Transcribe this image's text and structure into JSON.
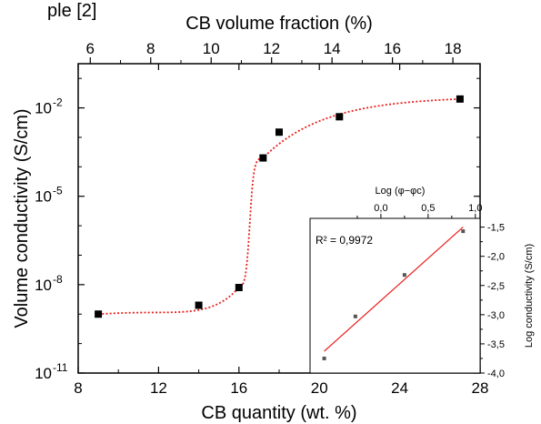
{
  "chart_data": [
    {
      "type": "scatter",
      "title": "",
      "header_fragment": "ple [2]",
      "xlabel": "CB quantity (wt. %)",
      "x2label": "CB volume fraction (%)",
      "ylabel": "Volume conductivity (S/cm)",
      "xlim": [
        8,
        28
      ],
      "x2lim": [
        5.6,
        18.9
      ],
      "ylim_log10": [
        -11,
        -0.5
      ],
      "yscale": "log",
      "x_ticks": [
        "8",
        "12",
        "16",
        "20",
        "24",
        "28"
      ],
      "x2_ticks": [
        "6",
        "8",
        "10",
        "12",
        "14",
        "16",
        "18"
      ],
      "y_ticks": [
        {
          "base": "10",
          "exp": "-11",
          "log": -11
        },
        {
          "base": "10",
          "exp": "-8",
          "log": -8
        },
        {
          "base": "10",
          "exp": "-5",
          "log": -5
        },
        {
          "base": "10",
          "exp": "-2",
          "log": -2
        }
      ],
      "series": [
        {
          "x": [
            9,
            14,
            16,
            17.2,
            18,
            21,
            27
          ],
          "y": [
            1e-09,
            2e-09,
            8e-09,
            0.0002,
            0.0015,
            0.005,
            0.02
          ],
          "marker": "square",
          "color": "#000000"
        }
      ],
      "fit_curve": {
        "style": "dotted",
        "color": "#e8201c",
        "threshold_x": 16.6
      }
    },
    {
      "type": "scatter",
      "title": "Log (φ−φc)",
      "ylabel": "Log conductivity (S/cm)",
      "xlim": [
        -0.75,
        1.05
      ],
      "ylim": [
        -4.0,
        -1.35
      ],
      "x_ticks": [
        "0,0",
        "0,5",
        "1,0"
      ],
      "y_ticks": [
        "-1,5",
        "-2,0",
        "-2,5",
        "-3,0",
        "-3,5",
        "-4,0"
      ],
      "annotation": "R² = 0,9972",
      "series": [
        {
          "x": [
            -0.6,
            -0.27,
            0.25,
            0.87
          ],
          "y": [
            -3.75,
            -3.03,
            -2.32,
            -1.57
          ],
          "marker": "square",
          "color": "#555555"
        }
      ],
      "fit_line": {
        "color": "#e8201c"
      }
    }
  ]
}
